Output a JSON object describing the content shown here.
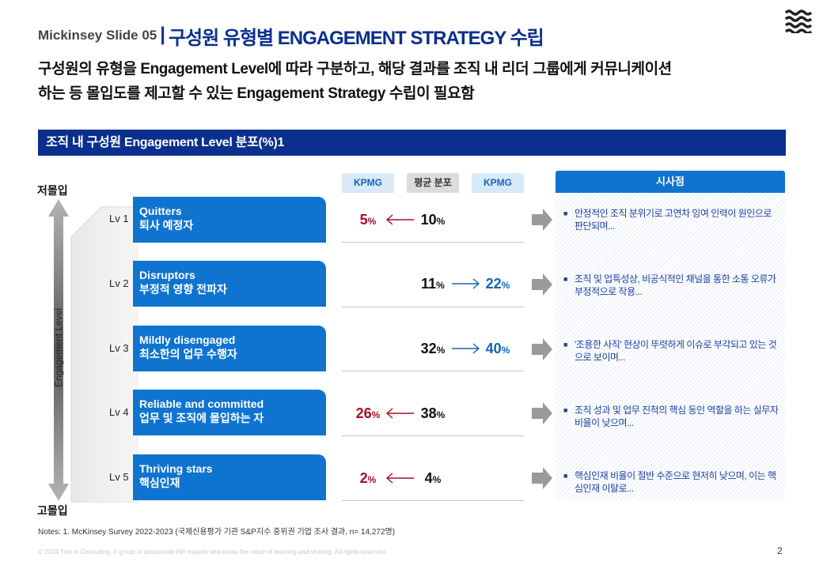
{
  "header": {
    "prefix": "Mickinsey  Slide  05",
    "separator": "|",
    "title": "구성원 유형별 ENGAGEMENT STRATEGY 수립"
  },
  "subtitle": {
    "line1": "구성원의 유형을 Engagement Level에 따라 구분하고, 해당 결과를 조직 내 리더 그룹에게 커뮤니케이션",
    "line2": "하는 등 몰입도를 제고할 수 있는 Engagement Strategy 수립이 필요함"
  },
  "section_title": "조직 내 구성원 Engagement Level 분포(%)1",
  "axis": {
    "top": "저몰입",
    "bottom": "고몰입",
    "label": "Engagement Level"
  },
  "columns": {
    "kpmg_left": "KPMG",
    "average": "평균 분포",
    "kpmg_right": "KPMG",
    "insights": "시사점"
  },
  "levels": [
    {
      "lv": "Lv 1",
      "en": "Quitters",
      "ko": "퇴사 예정자",
      "left": "5",
      "avg": "10",
      "right": "",
      "insight": "안정적인 조직 분위기로 고연차 잉여 인력이 원인으로 판단되며..."
    },
    {
      "lv": "Lv 2",
      "en": "Disruptors",
      "ko": "부정적 영향 전파자",
      "left": "",
      "avg": "11",
      "right": "22",
      "insight": "조직 및 업특성상, 비공식적인 채널을 통한 소통 오류가 부정적으로 작용..."
    },
    {
      "lv": "Lv 3",
      "en": "Mildly disengaged",
      "ko": "최소한의 업무 수행자",
      "left": "",
      "avg": "32",
      "right": "40",
      "insight": "'조용한 사직' 현상이 뚜렷하게 이슈로 부각되고 있는 것으로 보이며..."
    },
    {
      "lv": "Lv 4",
      "en": "Reliable and committed",
      "ko": "업무 및 조직에 몰입하는 자",
      "left": "26",
      "avg": "38",
      "right": "",
      "insight": "조직 성과 및 업무 진척의 핵심 동인 역할을 하는 실무자 비율이 낮으며..."
    },
    {
      "lv": "Lv 5",
      "en": "Thriving stars",
      "ko": "핵심인재",
      "left": "2",
      "avg": "4",
      "right": "",
      "insight": "핵심인재 비율이 절반 수준으로 현저히 낮으며, 이는 핵심인재 이탈로..."
    }
  ],
  "percent_sign": "%",
  "notes": "Notes: 1. McKinsey Survey 2022-2023  (국제신용평가 기관 S&P지수 중위권 기업 조사 결과, n= 14,272명)",
  "footer": "© 2024 This is Consulting. A group of passionate HR experts who know the value of learning and sharing. All rights reserved.",
  "page_number": "2",
  "colors": {
    "navy": "#0a2f8c",
    "blue": "#0f74cf",
    "red": "#a80f24"
  }
}
